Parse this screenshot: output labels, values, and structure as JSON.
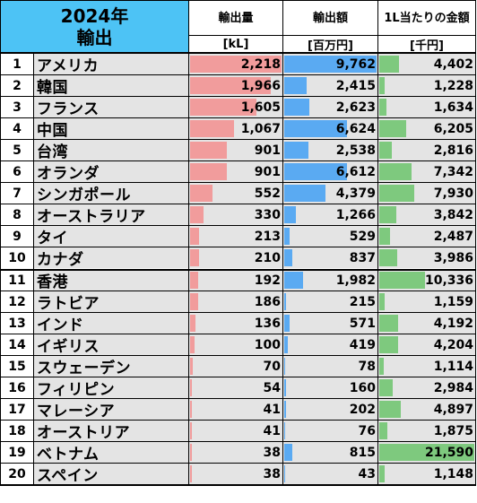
{
  "header": {
    "year": "2024年",
    "title": "輸出",
    "col_volume": "輸出量",
    "col_amount": "輸出額",
    "col_unit_price": "1L当たりの金額",
    "unit_volume": "[kL]",
    "unit_amount": "[百万円]",
    "unit_unit_price": "[千円]"
  },
  "colors": {
    "header_blue": "#4dc3f5",
    "row_gray": "#e4e4e4",
    "volume_bar": "#f19c9c",
    "amount_bar": "#5aaaf2",
    "unit_price_bar": "#7ec97e"
  },
  "scale_max": {
    "volume": 2218,
    "amount": 9762,
    "unit_price": 21590
  },
  "rows": [
    {
      "rank": "1",
      "country": "アメリカ",
      "volume": "2,218",
      "amount": "9,762",
      "unit_price": "4,402",
      "v": 2218,
      "a": 9762,
      "u": 4402
    },
    {
      "rank": "2",
      "country": "韓国",
      "volume": "1,966",
      "amount": "2,415",
      "unit_price": "1,228",
      "v": 1966,
      "a": 2415,
      "u": 1228
    },
    {
      "rank": "3",
      "country": "フランス",
      "volume": "1,605",
      "amount": "2,623",
      "unit_price": "1,634",
      "v": 1605,
      "a": 2623,
      "u": 1634
    },
    {
      "rank": "4",
      "country": "中国",
      "volume": "1,067",
      "amount": "6,624",
      "unit_price": "6,205",
      "v": 1067,
      "a": 6624,
      "u": 6205
    },
    {
      "rank": "5",
      "country": "台湾",
      "volume": "901",
      "amount": "2,538",
      "unit_price": "2,816",
      "v": 901,
      "a": 2538,
      "u": 2816
    },
    {
      "rank": "6",
      "country": "オランダ",
      "volume": "901",
      "amount": "6,612",
      "unit_price": "7,342",
      "v": 901,
      "a": 6612,
      "u": 7342
    },
    {
      "rank": "7",
      "country": "シンガポール",
      "volume": "552",
      "amount": "4,379",
      "unit_price": "7,930",
      "v": 552,
      "a": 4379,
      "u": 7930
    },
    {
      "rank": "8",
      "country": "オーストラリア",
      "volume": "330",
      "amount": "1,266",
      "unit_price": "3,842",
      "v": 330,
      "a": 1266,
      "u": 3842
    },
    {
      "rank": "9",
      "country": "タイ",
      "volume": "213",
      "amount": "529",
      "unit_price": "2,487",
      "v": 213,
      "a": 529,
      "u": 2487
    },
    {
      "rank": "10",
      "country": "カナダ",
      "volume": "210",
      "amount": "837",
      "unit_price": "3,986",
      "v": 210,
      "a": 837,
      "u": 3986
    },
    {
      "rank": "11",
      "country": "香港",
      "volume": "192",
      "amount": "1,982",
      "unit_price": "10,336",
      "v": 192,
      "a": 1982,
      "u": 10336
    },
    {
      "rank": "12",
      "country": "ラトビア",
      "volume": "186",
      "amount": "215",
      "unit_price": "1,159",
      "v": 186,
      "a": 215,
      "u": 1159
    },
    {
      "rank": "13",
      "country": "インド",
      "volume": "136",
      "amount": "571",
      "unit_price": "4,192",
      "v": 136,
      "a": 571,
      "u": 4192
    },
    {
      "rank": "14",
      "country": "イギリス",
      "volume": "100",
      "amount": "419",
      "unit_price": "4,204",
      "v": 100,
      "a": 419,
      "u": 4204
    },
    {
      "rank": "15",
      "country": "スウェーデン",
      "volume": "70",
      "amount": "78",
      "unit_price": "1,114",
      "v": 70,
      "a": 78,
      "u": 1114
    },
    {
      "rank": "16",
      "country": "フィリピン",
      "volume": "54",
      "amount": "160",
      "unit_price": "2,984",
      "v": 54,
      "a": 160,
      "u": 2984
    },
    {
      "rank": "17",
      "country": "マレーシア",
      "volume": "41",
      "amount": "202",
      "unit_price": "4,897",
      "v": 41,
      "a": 202,
      "u": 4897
    },
    {
      "rank": "18",
      "country": "オーストリア",
      "volume": "41",
      "amount": "76",
      "unit_price": "1,875",
      "v": 41,
      "a": 76,
      "u": 1875
    },
    {
      "rank": "19",
      "country": "ベトナム",
      "volume": "38",
      "amount": "815",
      "unit_price": "21,590",
      "v": 38,
      "a": 815,
      "u": 21590
    },
    {
      "rank": "20",
      "country": "スペイン",
      "volume": "38",
      "amount": "43",
      "unit_price": "1,148",
      "v": 38,
      "a": 43,
      "u": 1148
    }
  ]
}
